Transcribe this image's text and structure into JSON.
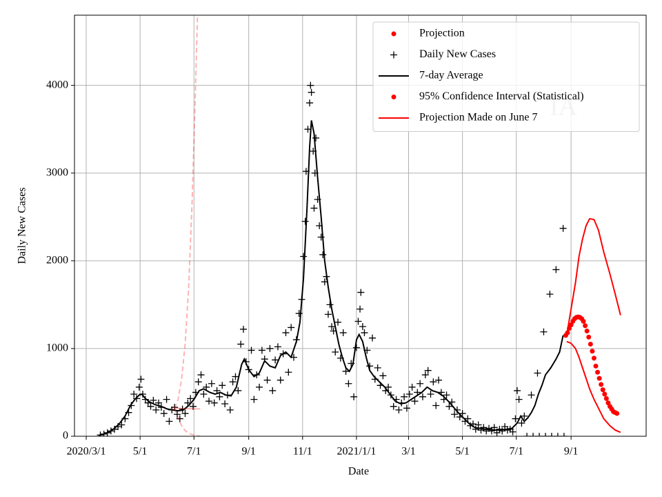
{
  "chart_data": {
    "type": "line",
    "xlabel": "Date",
    "ylabel": "Daily New Cases",
    "annotation": "IA",
    "xlim": [
      -13.3,
      634
    ],
    "ylim": [
      0,
      4800
    ],
    "xticks": [
      {
        "value": 0,
        "label": "2020/3/1"
      },
      {
        "value": 61,
        "label": "5/1"
      },
      {
        "value": 122,
        "label": "7/1"
      },
      {
        "value": 184,
        "label": "9/1"
      },
      {
        "value": 245,
        "label": "11/1"
      },
      {
        "value": 306,
        "label": "2021/1/1"
      },
      {
        "value": 365,
        "label": "3/1"
      },
      {
        "value": 426,
        "label": "5/1"
      },
      {
        "value": 487,
        "label": "7/1"
      },
      {
        "value": 549,
        "label": "9/1"
      }
    ],
    "yticks": [
      0,
      1000,
      2000,
      3000,
      4000
    ],
    "grid": true,
    "legend": "upper right",
    "series": [
      {
        "name": "Projection",
        "color": "#ff0000",
        "style": "dot",
        "legend_marker": "dot",
        "x": [
          543,
          545,
          547,
          549,
          551,
          553,
          555,
          557,
          559,
          561,
          563,
          565,
          567,
          569,
          571,
          573,
          575,
          577,
          579,
          581,
          583,
          585,
          587,
          589,
          591,
          593,
          595,
          597,
          599,
          601
        ],
        "values": [
          1150,
          1180,
          1230,
          1270,
          1310,
          1340,
          1355,
          1360,
          1355,
          1340,
          1310,
          1260,
          1200,
          1130,
          1050,
          970,
          890,
          800,
          730,
          660,
          590,
          530,
          480,
          430,
          380,
          340,
          310,
          280,
          270,
          260
        ]
      },
      {
        "name": "Daily New Cases",
        "color": "#000000",
        "style": "plus",
        "legend_marker": "plus",
        "x": [
          16,
          20,
          24,
          28,
          32,
          36,
          40,
          44,
          48,
          51,
          54,
          57,
          60,
          62,
          64,
          67,
          70,
          73,
          76,
          79,
          82,
          85,
          88,
          91,
          94,
          97,
          100,
          103,
          106,
          109,
          112,
          115,
          118,
          121,
          124,
          127,
          130,
          133,
          136,
          139,
          142,
          145,
          148,
          151,
          154,
          157,
          160,
          163,
          166,
          169,
          172,
          175,
          178,
          181,
          184,
          187,
          190,
          193,
          196,
          199,
          202,
          205,
          208,
          211,
          214,
          217,
          220,
          223,
          226,
          229,
          232,
          235,
          238,
          241,
          244,
          246,
          248,
          249,
          251,
          253,
          254,
          255,
          257,
          258,
          259,
          260,
          262,
          264,
          266,
          268,
          270,
          272,
          274,
          276,
          278,
          280,
          282,
          285,
          288,
          291,
          294,
          297,
          300,
          303,
          306,
          308,
          310,
          311,
          313,
          315,
          318,
          321,
          324,
          327,
          330,
          333,
          336,
          339,
          342,
          345,
          348,
          351,
          354,
          357,
          360,
          363,
          366,
          369,
          372,
          375,
          378,
          381,
          384,
          387,
          390,
          393,
          396,
          399,
          402,
          405,
          408,
          411,
          414,
          417,
          420,
          423,
          426,
          429,
          432,
          435,
          438,
          441,
          444,
          447,
          450,
          453,
          456,
          459,
          462,
          465,
          468,
          471,
          474,
          477,
          480,
          483,
          486,
          488,
          490,
          493,
          496,
          499,
          504,
          506,
          511,
          513,
          518,
          520,
          525,
          527,
          532,
          534,
          540,
          541
        ],
        "values": [
          15,
          25,
          40,
          60,
          80,
          110,
          130,
          200,
          270,
          350,
          480,
          430,
          560,
          650,
          480,
          420,
          380,
          340,
          410,
          300,
          380,
          330,
          260,
          420,
          170,
          300,
          330,
          250,
          200,
          310,
          260,
          380,
          430,
          340,
          500,
          620,
          700,
          480,
          560,
          400,
          600,
          380,
          520,
          450,
          580,
          370,
          470,
          300,
          620,
          680,
          520,
          1050,
          1220,
          850,
          760,
          980,
          420,
          700,
          560,
          980,
          880,
          640,
          1000,
          520,
          870,
          1020,
          640,
          940,
          1180,
          730,
          1240,
          900,
          1100,
          1400,
          1560,
          2050,
          2450,
          3020,
          3500,
          3800,
          4000,
          3920,
          3250,
          2600,
          3000,
          3400,
          2700,
          2400,
          2270,
          2070,
          1760,
          1820,
          1390,
          1500,
          1250,
          1200,
          960,
          1300,
          890,
          1180,
          740,
          600,
          830,
          450,
          1010,
          1310,
          1450,
          1640,
          1250,
          1180,
          980,
          800,
          1120,
          650,
          780,
          580,
          690,
          520,
          560,
          470,
          340,
          420,
          300,
          380,
          450,
          320,
          480,
          560,
          400,
          500,
          600,
          450,
          700,
          750,
          480,
          620,
          350,
          640,
          500,
          420,
          470,
          340,
          390,
          250,
          300,
          220,
          260,
          170,
          200,
          120,
          140,
          80,
          130,
          70,
          100,
          60,
          90,
          60,
          100,
          40,
          80,
          60,
          110,
          70,
          80,
          50,
          200,
          520,
          420,
          150,
          230,
          0,
          470,
          0,
          720,
          0,
          1190,
          0,
          1620,
          0,
          1900,
          0,
          2370,
          0
        ]
      },
      {
        "name": "7-day Average",
        "color": "#000000",
        "style": "line",
        "legend_marker": "line",
        "x": [
          14,
          20,
          26,
          32,
          38,
          44,
          50,
          55,
          60,
          63,
          67,
          72,
          78,
          85,
          92,
          98,
          104,
          110,
          116,
          122,
          128,
          133,
          140,
          146,
          152,
          158,
          164,
          170,
          176,
          179,
          184,
          190,
          196,
          202,
          208,
          214,
          220,
          226,
          232,
          238,
          242,
          246,
          250,
          253,
          255,
          258,
          262,
          266,
          270,
          274,
          278,
          282,
          286,
          290,
          294,
          298,
          302,
          306,
          309,
          313,
          317,
          321,
          326,
          332,
          338,
          344,
          350,
          356,
          362,
          368,
          374,
          380,
          386,
          392,
          398,
          404,
          410,
          416,
          422,
          428,
          434,
          440,
          446,
          452,
          458,
          464,
          470,
          476,
          482,
          488,
          492,
          496,
          500,
          504,
          508,
          512,
          516,
          520,
          526,
          532,
          536,
          540
        ],
        "values": [
          10,
          25,
          50,
          90,
          150,
          230,
          350,
          420,
          470,
          480,
          430,
          390,
          360,
          340,
          310,
          300,
          290,
          300,
          350,
          420,
          520,
          540,
          500,
          480,
          500,
          470,
          460,
          560,
          820,
          880,
          760,
          680,
          720,
          860,
          800,
          780,
          920,
          960,
          900,
          1080,
          1300,
          1800,
          2600,
          3300,
          3600,
          3450,
          2950,
          2500,
          2000,
          1700,
          1450,
          1250,
          1050,
          900,
          780,
          740,
          820,
          1100,
          1160,
          1080,
          900,
          750,
          680,
          620,
          560,
          480,
          400,
          370,
          380,
          420,
          460,
          500,
          560,
          520,
          500,
          460,
          400,
          330,
          260,
          200,
          140,
          100,
          90,
          80,
          75,
          70,
          75,
          80,
          90,
          150,
          230,
          170,
          210,
          270,
          350,
          480,
          580,
          700,
          780,
          880,
          960,
          1150
        ]
      },
      {
        "name": "95% Confidence Interval (Statistical)",
        "color": "#ff0000",
        "style": "line",
        "legend_marker": "dot",
        "x": [
          544,
          549,
          554,
          558,
          562,
          566,
          570,
          575,
          580,
          586,
          593,
          599,
          605
        ],
        "upper": [
          1150,
          1450,
          1750,
          2050,
          2250,
          2400,
          2480,
          2470,
          2350,
          2100,
          1850,
          1620,
          1380
        ],
        "lower": [
          1080,
          1060,
          1000,
          900,
          780,
          660,
          540,
          420,
          320,
          200,
          120,
          70,
          45
        ]
      },
      {
        "name": "Projection Made on June 7",
        "color": "#ff0000",
        "opacity": 0.3,
        "style": "line",
        "legend_marker": "line",
        "x": [
          100,
          104,
          108,
          112,
          116,
          120,
          123,
          126,
          129
        ],
        "values": [
          320,
          320,
          318,
          316,
          315,
          314,
          313,
          312,
          312
        ],
        "upper": [
          320,
          420,
          650,
          1050,
          1700,
          2700,
          3700,
          4800,
          null
        ],
        "lower": [
          320,
          210,
          120,
          65,
          35,
          18,
          10,
          4,
          0
        ]
      }
    ]
  }
}
